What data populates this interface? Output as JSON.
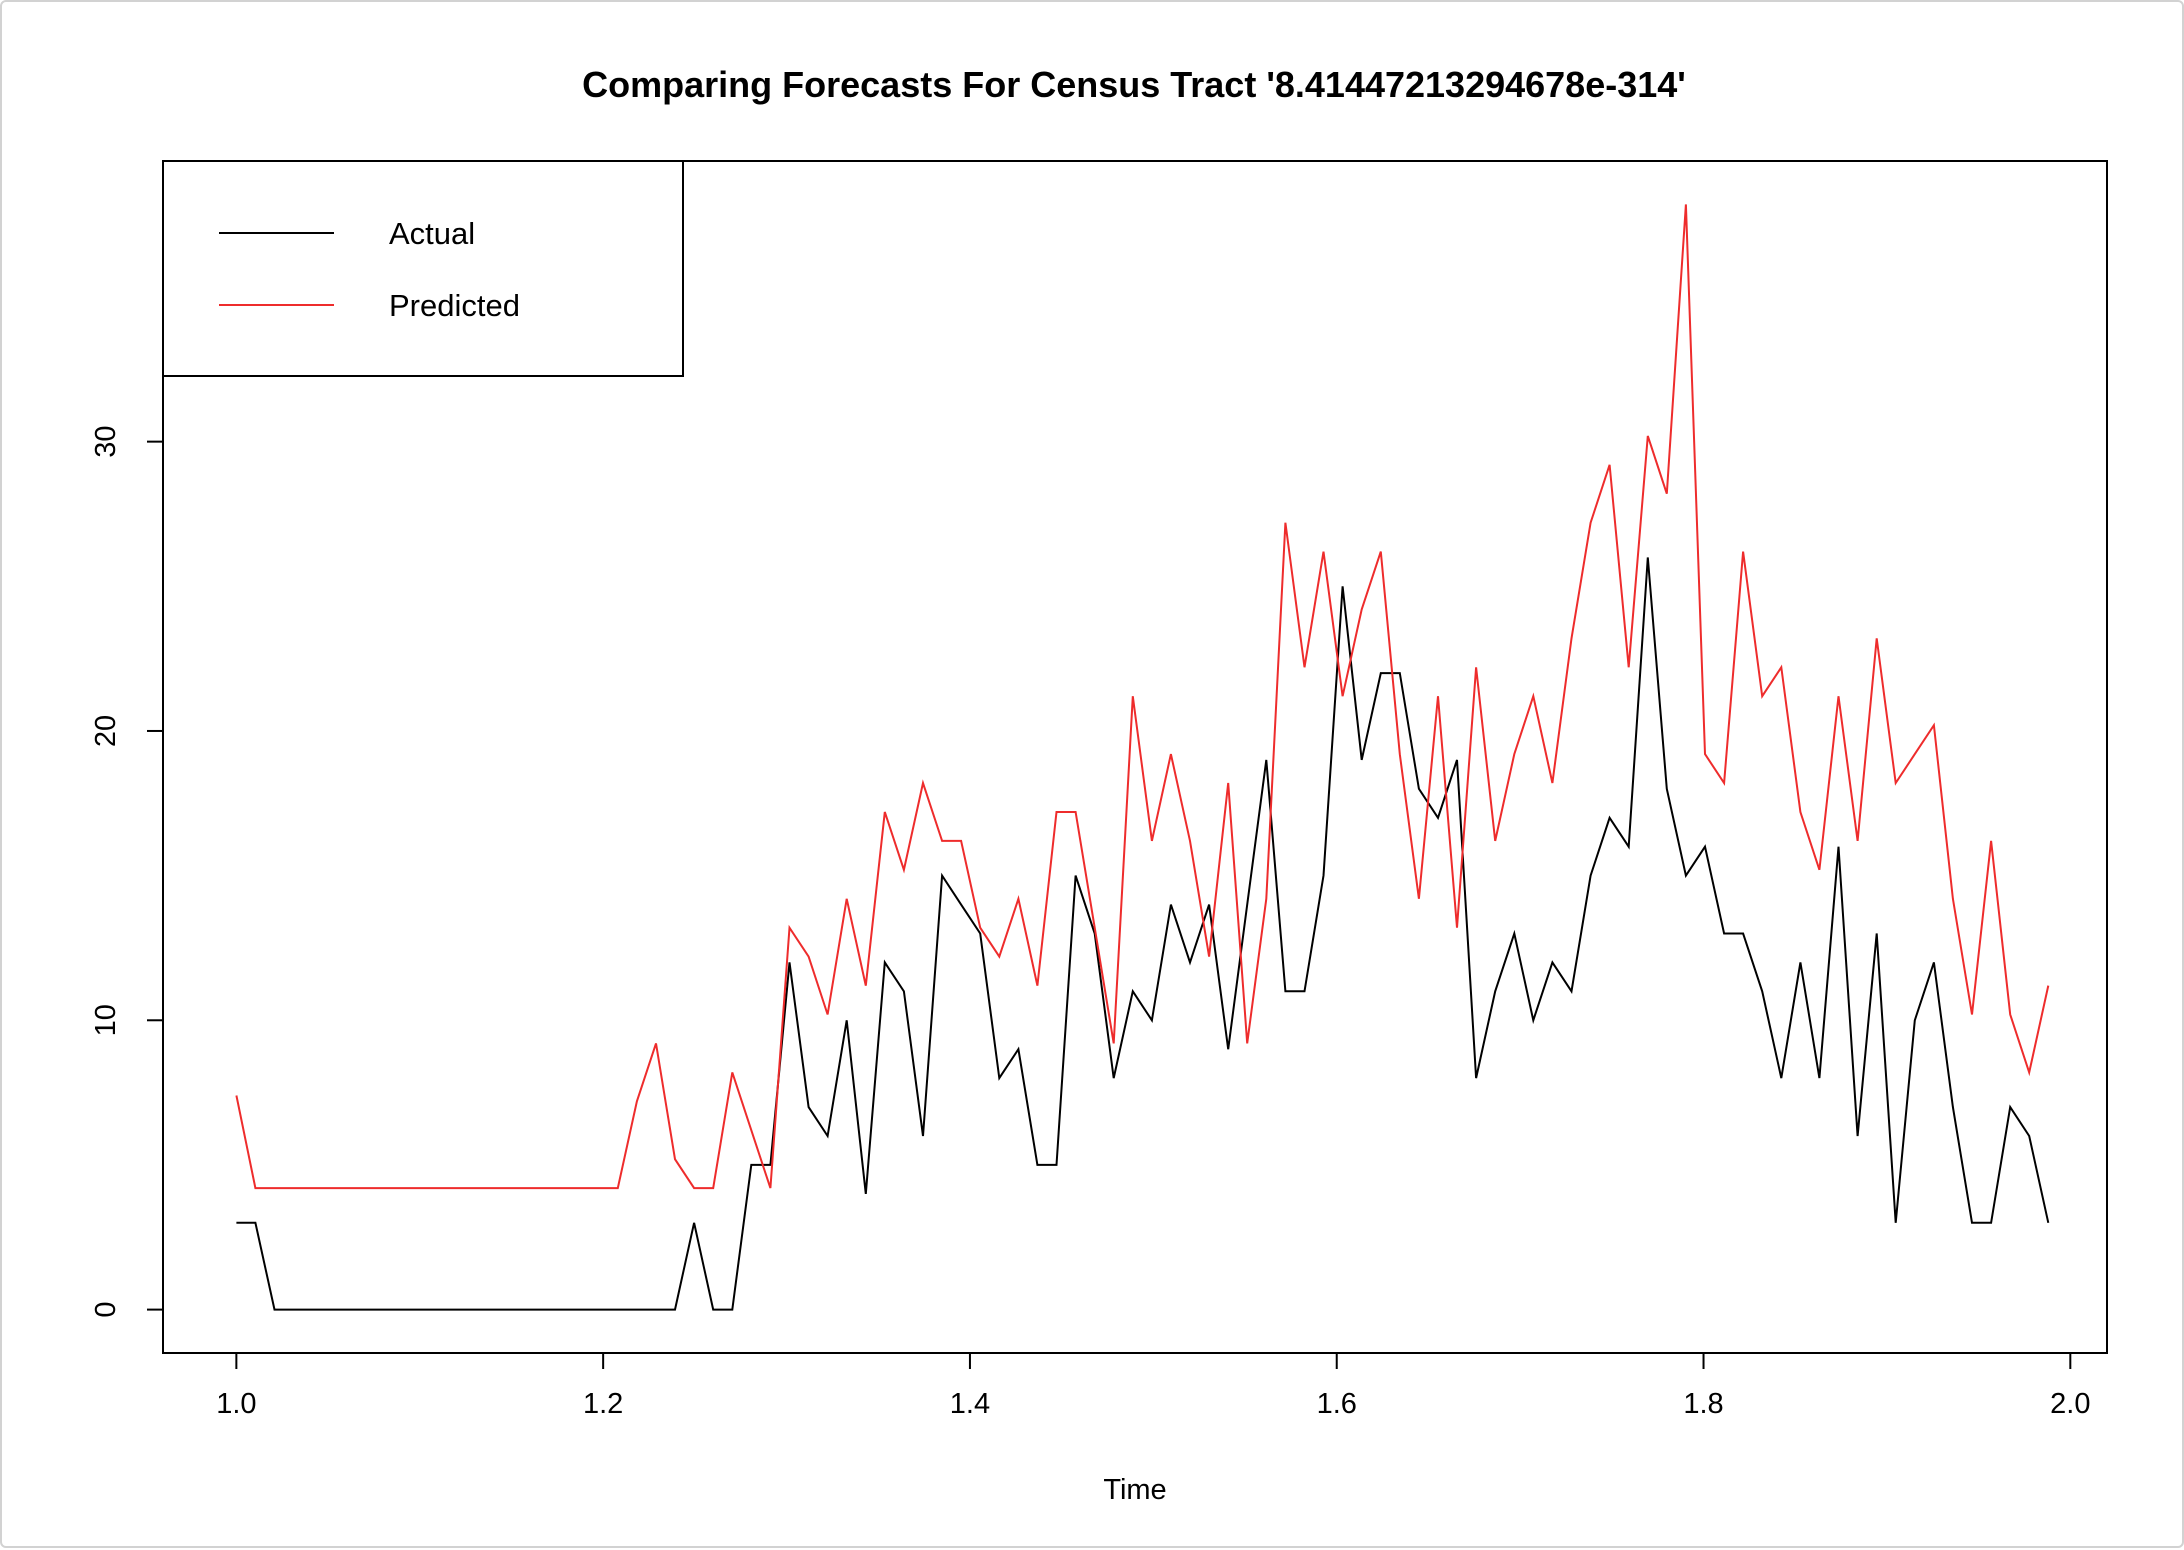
{
  "chart_data": {
    "type": "line",
    "title": "Comparing Forecasts For Census Tract '8.41447213294678e-314'",
    "xlabel": "Time",
    "ylabel": "",
    "xlim": [
      0.96,
      2.02
    ],
    "ylim": [
      -1.5,
      39.7
    ],
    "x_ticks": [
      "1.0",
      "1.2",
      "1.4",
      "1.6",
      "1.8",
      "2.0"
    ],
    "x_tick_values": [
      1.0,
      1.2,
      1.4,
      1.6,
      1.8,
      2.0
    ],
    "y_ticks": [
      "0",
      "10",
      "20",
      "30"
    ],
    "y_tick_values": [
      0,
      10,
      20,
      30
    ],
    "grid": false,
    "legend_position": "top-left",
    "x_start": 1.0,
    "x_step": 0.0104,
    "series": [
      {
        "name": "Actual",
        "color": "#000000",
        "values": [
          3,
          3,
          0,
          0,
          0,
          0,
          0,
          0,
          0,
          0,
          0,
          0,
          0,
          0,
          0,
          0,
          0,
          0,
          0,
          0,
          0,
          0,
          0,
          0,
          3,
          0,
          0,
          5,
          5,
          12,
          7,
          6,
          10,
          4,
          12,
          11,
          6,
          15,
          14,
          13,
          8,
          9,
          5,
          5,
          15,
          13,
          8,
          11,
          10,
          14,
          12,
          14,
          9,
          14,
          19,
          11,
          11,
          15,
          25,
          19,
          22,
          22,
          18,
          17,
          19,
          8,
          11,
          13,
          10,
          12,
          11,
          15,
          17,
          16,
          26,
          18,
          15,
          16,
          13,
          13,
          11,
          8,
          12,
          8,
          16,
          6,
          13,
          3,
          10,
          12,
          7,
          3,
          3,
          7,
          6,
          3
        ]
      },
      {
        "name": "Predicted",
        "color": "#ee2c2c",
        "values": [
          7.4,
          4.2,
          4.2,
          4.2,
          4.2,
          4.2,
          4.2,
          4.2,
          4.2,
          4.2,
          4.2,
          4.2,
          4.2,
          4.2,
          4.2,
          4.2,
          4.2,
          4.2,
          4.2,
          4.2,
          4.2,
          7.2,
          9.2,
          5.2,
          4.2,
          4.2,
          8.2,
          6.2,
          4.2,
          13.2,
          12.2,
          10.2,
          14.2,
          11.2,
          17.2,
          15.2,
          18.2,
          16.2,
          16.2,
          13.2,
          12.2,
          14.2,
          11.2,
          17.2,
          17.2,
          13.2,
          9.2,
          21.2,
          16.2,
          19.2,
          16.2,
          12.2,
          18.2,
          9.2,
          14.2,
          27.2,
          22.2,
          26.2,
          21.2,
          24.2,
          26.2,
          19.2,
          14.2,
          21.2,
          13.2,
          22.2,
          16.2,
          19.2,
          21.2,
          18.2,
          23.2,
          27.2,
          29.2,
          22.2,
          30.2,
          28.2,
          38.2,
          19.2,
          18.2,
          26.2,
          21.2,
          22.2,
          17.2,
          15.2,
          21.2,
          16.2,
          23.2,
          18.2,
          19.2,
          20.2,
          14.2,
          10.2,
          16.2,
          10.2,
          8.2,
          11.2
        ]
      }
    ]
  }
}
